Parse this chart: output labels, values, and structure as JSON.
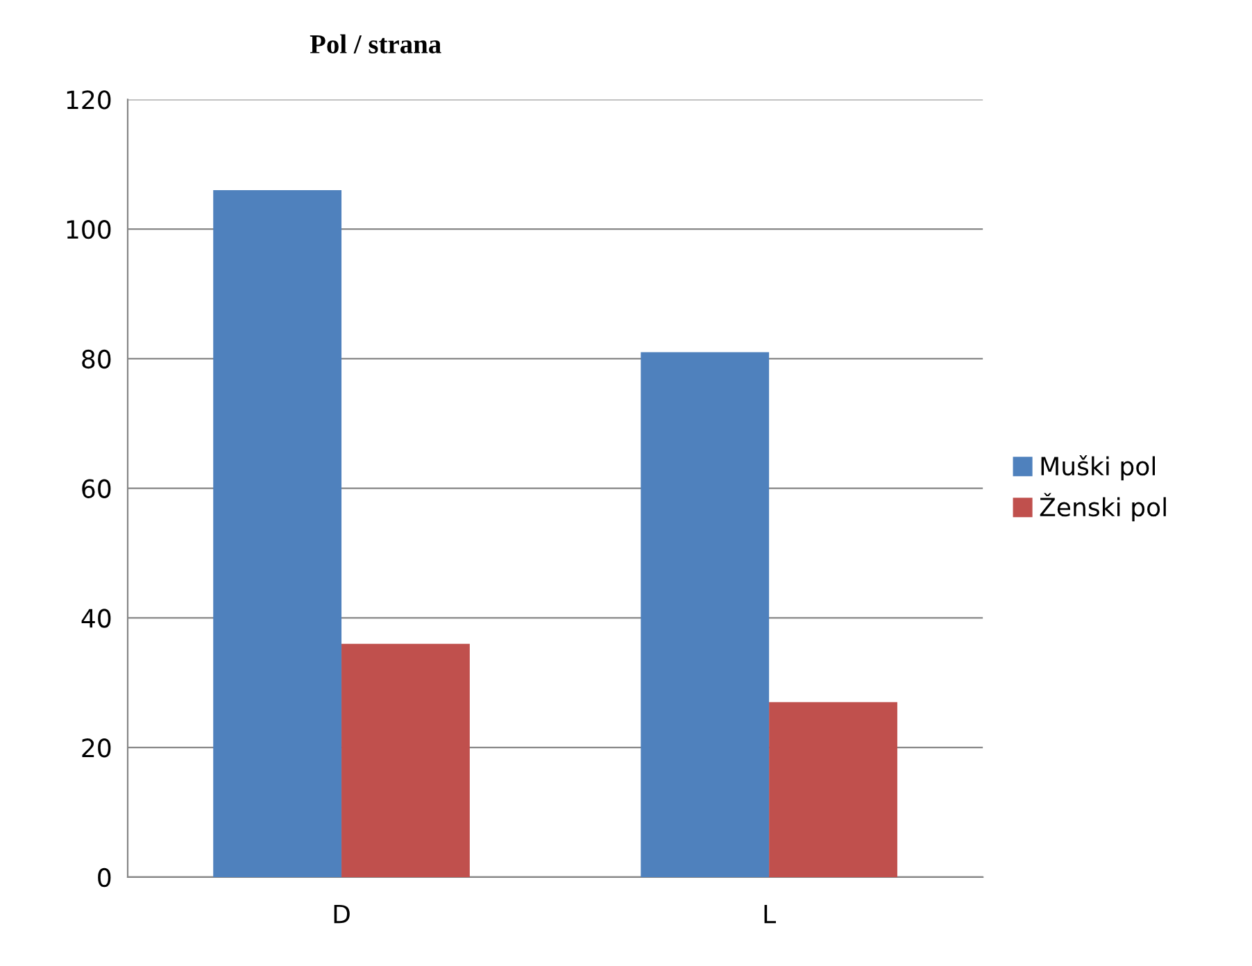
{
  "chart_data": {
    "type": "bar",
    "title": "Pol / strana",
    "categories": [
      "D",
      "L"
    ],
    "series": [
      {
        "name": "Muški pol",
        "color": "#4f81bd",
        "values": [
          106,
          81
        ]
      },
      {
        "name": "Ženski pol",
        "color": "#c0504d",
        "values": [
          36,
          27
        ]
      }
    ],
    "ylim": [
      0,
      120
    ],
    "yticks": [
      0,
      20,
      40,
      60,
      80,
      100,
      120
    ],
    "grid": "y",
    "legend": "right"
  }
}
